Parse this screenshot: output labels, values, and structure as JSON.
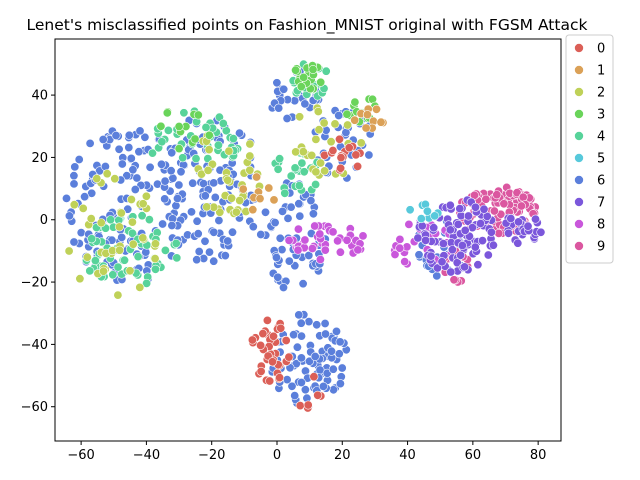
{
  "chart_data": {
    "type": "scatter",
    "title": "Lenet's misclassified points on Fashion_MNIST original with FGSM Attack",
    "xlabel": "",
    "ylabel": "",
    "xlim": [
      -68,
      87
    ],
    "ylim": [
      -71,
      58
    ],
    "xticks": [
      -60,
      -40,
      -20,
      0,
      20,
      40,
      60,
      80
    ],
    "yticks": [
      -60,
      -40,
      -20,
      0,
      20,
      40
    ],
    "grid": false,
    "legend_position": "outside-top-right",
    "legend": [
      "0",
      "1",
      "2",
      "3",
      "4",
      "5",
      "6",
      "7",
      "8",
      "9"
    ],
    "colors": [
      "#db5f57",
      "#dba157",
      "#bfd158",
      "#6ad45a",
      "#57d39a",
      "#57c9db",
      "#5b7fdb",
      "#7b57db",
      "#c957db",
      "#db57a0"
    ],
    "clusters": [
      {
        "class": "6",
        "cx": -45,
        "cy": 5,
        "rx": 20,
        "ry": 25,
        "n": 150
      },
      {
        "class": "6",
        "cx": -20,
        "cy": 10,
        "rx": 15,
        "ry": 25,
        "n": 110
      },
      {
        "class": "6",
        "cx": 5,
        "cy": -5,
        "rx": 10,
        "ry": 18,
        "n": 60
      },
      {
        "class": "6",
        "cx": 10,
        "cy": -45,
        "rx": 12,
        "ry": 16,
        "n": 90
      },
      {
        "class": "6",
        "cx": 20,
        "cy": 25,
        "rx": 10,
        "ry": 12,
        "n": 35
      },
      {
        "class": "6",
        "cx": 5,
        "cy": 40,
        "rx": 8,
        "ry": 8,
        "n": 25
      },
      {
        "class": "6",
        "cx": 50,
        "cy": -10,
        "rx": 8,
        "ry": 10,
        "n": 20
      },
      {
        "class": "4",
        "cx": -45,
        "cy": -10,
        "rx": 15,
        "ry": 12,
        "n": 60
      },
      {
        "class": "4",
        "cx": -25,
        "cy": 25,
        "rx": 15,
        "ry": 10,
        "n": 40
      },
      {
        "class": "4",
        "cx": 10,
        "cy": 45,
        "rx": 6,
        "ry": 6,
        "n": 25
      },
      {
        "class": "4",
        "cx": 5,
        "cy": 15,
        "rx": 8,
        "ry": 10,
        "n": 25
      },
      {
        "class": "2",
        "cx": -50,
        "cy": -5,
        "rx": 15,
        "ry": 20,
        "n": 40
      },
      {
        "class": "2",
        "cx": -15,
        "cy": 15,
        "rx": 12,
        "ry": 15,
        "n": 35
      },
      {
        "class": "2",
        "cx": 15,
        "cy": 25,
        "rx": 12,
        "ry": 12,
        "n": 25
      },
      {
        "class": "3",
        "cx": 10,
        "cy": 45,
        "rx": 6,
        "ry": 5,
        "n": 20
      },
      {
        "class": "3",
        "cx": -30,
        "cy": 28,
        "rx": 10,
        "ry": 8,
        "n": 12
      },
      {
        "class": "3",
        "cx": 25,
        "cy": 35,
        "rx": 6,
        "ry": 6,
        "n": 12
      },
      {
        "class": "0",
        "cx": -2,
        "cy": -42,
        "rx": 6,
        "ry": 10,
        "n": 40
      },
      {
        "class": "0",
        "cx": 20,
        "cy": 20,
        "rx": 6,
        "ry": 6,
        "n": 15
      },
      {
        "class": "0",
        "cx": 10,
        "cy": -55,
        "rx": 5,
        "ry": 6,
        "n": 6
      },
      {
        "class": "1",
        "cx": 28,
        "cy": 32,
        "rx": 5,
        "ry": 5,
        "n": 10
      },
      {
        "class": "1",
        "cx": -5,
        "cy": 8,
        "rx": 6,
        "ry": 6,
        "n": 8
      },
      {
        "class": "8",
        "cx": 15,
        "cy": -7,
        "rx": 12,
        "ry": 6,
        "n": 40
      },
      {
        "class": "8",
        "cx": 45,
        "cy": -8,
        "rx": 10,
        "ry": 8,
        "n": 30
      },
      {
        "class": "9",
        "cx": 68,
        "cy": 3,
        "rx": 12,
        "ry": 8,
        "n": 110
      },
      {
        "class": "9",
        "cx": 55,
        "cy": -15,
        "rx": 5,
        "ry": 5,
        "n": 12
      },
      {
        "class": "7",
        "cx": 55,
        "cy": -5,
        "rx": 12,
        "ry": 12,
        "n": 90
      },
      {
        "class": "7",
        "cx": 75,
        "cy": -3,
        "rx": 6,
        "ry": 5,
        "n": 25
      },
      {
        "class": "5",
        "cx": 45,
        "cy": 2,
        "rx": 5,
        "ry": 3,
        "n": 8
      }
    ]
  }
}
